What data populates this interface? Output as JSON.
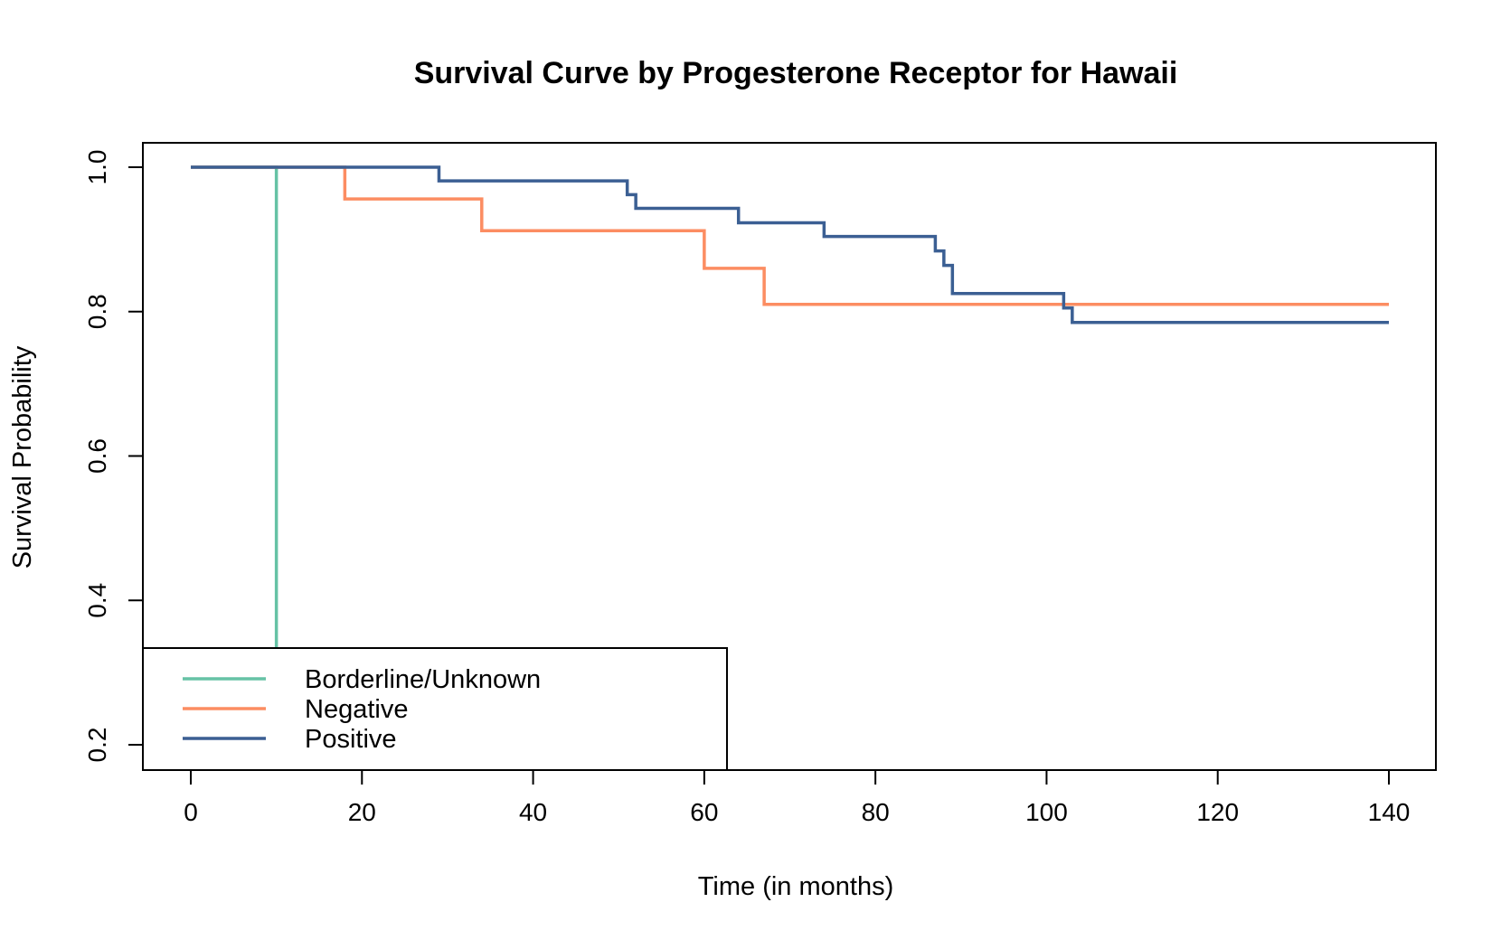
{
  "chart_data": {
    "type": "line",
    "title": "Survival Curve by Progesterone Receptor for Hawaii",
    "xlabel": "Time (in months)",
    "ylabel": "Survival Probability",
    "xlim": [
      0,
      140
    ],
    "ylim": [
      0.2,
      1.0
    ],
    "x_ticks": [
      0,
      20,
      40,
      60,
      80,
      100,
      120,
      140
    ],
    "y_ticks": [
      0.2,
      0.4,
      0.6,
      0.8,
      1.0
    ],
    "y_tick_labels": [
      "0.2",
      "0.4",
      "0.6",
      "0.8",
      "1.0"
    ],
    "grid": false,
    "legend_position": "bottom-left",
    "series": [
      {
        "name": "Borderline/Unknown",
        "color": "#66c2a5",
        "step": true,
        "x": [
          0,
          10,
          10
        ],
        "y": [
          1.0,
          1.0,
          0.0
        ]
      },
      {
        "name": "Negative",
        "color": "#fc8d62",
        "step": true,
        "x": [
          0,
          18,
          34,
          60,
          67,
          140
        ],
        "y": [
          1.0,
          0.956,
          0.912,
          0.86,
          0.81,
          0.81
        ]
      },
      {
        "name": "Positive",
        "color": "#3b5f93",
        "step": true,
        "x": [
          0,
          29,
          51,
          52,
          64,
          74,
          87,
          88,
          89,
          102,
          103,
          140
        ],
        "y": [
          1.0,
          0.981,
          0.962,
          0.943,
          0.923,
          0.904,
          0.884,
          0.864,
          0.825,
          0.805,
          0.785,
          0.785
        ]
      }
    ]
  }
}
